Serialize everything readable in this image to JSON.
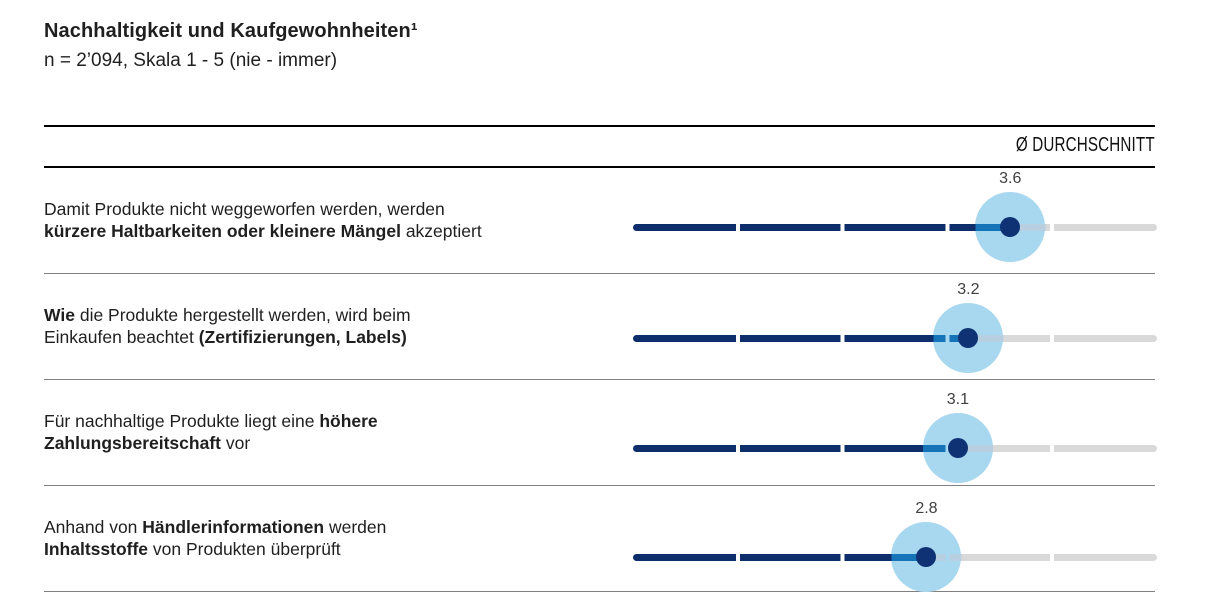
{
  "colors": {
    "navy": "#0d2e6b",
    "dot_navy": "#0e3273",
    "halo_blue": "#a8d7f0",
    "halo_line_blue": "#1573b8",
    "halo_line_gray": "#b7cfe0",
    "track_gray": "#d9d9d9",
    "separator_gray": "#808080",
    "header_line_black": "#000000",
    "value_label_gray": "#404040"
  },
  "chart_data": {
    "type": "scatter",
    "subtype": "dot-plot-averages",
    "title": "Nachhaltigkeit und Kaufgewohnheiten¹",
    "subtitle": "n = 2’094, Skala 1 - 5 (nie - immer)",
    "n": "2’094",
    "value_column_header": "Ø DURCHSCHNITT",
    "scale": {
      "min": 1,
      "max": 5,
      "min_label": "nie",
      "max_label": "immer"
    },
    "axis_range_drawn": [
      0,
      5
    ],
    "tick_gaps_at": [
      1,
      2,
      3,
      4
    ],
    "grid": false,
    "legend": false,
    "categories": [
      "Damit Produkte nicht weggeworfen werden, werden kürzere Haltbarkeiten oder kleinere Mängel akzeptiert",
      "Wie die Produkte hergestellt werden, wird beim Einkaufen beachtet (Zertifizierungen, Labels)",
      "Für nachhaltige Produkte liegt eine höhere Zahlungsbereitschaft vor",
      "Anhand von Händlerinformationen werden Inhaltsstoffe von Produkten überprüft"
    ],
    "values": [
      3.6,
      3.2,
      3.1,
      2.8
    ],
    "rows": [
      {
        "value": "3.6",
        "lines": [
          [
            {
              "t": "Damit Produkte nicht weggeworfen werden, werden",
              "b": false
            }
          ],
          [
            {
              "t": "kürzere Haltbarkeiten oder kleinere Mängel",
              "b": true
            },
            {
              "t": " akzeptiert",
              "b": false
            }
          ]
        ]
      },
      {
        "value": "3.2",
        "lines": [
          [
            {
              "t": "Wie",
              "b": true
            },
            {
              "t": " die Produkte hergestellt werden, wird beim",
              "b": false
            }
          ],
          [
            {
              "t": "Einkaufen beachtet ",
              "b": false
            },
            {
              "t": "(Zertifizierungen, Labels)",
              "b": true
            }
          ]
        ]
      },
      {
        "value": "3.1",
        "lines": [
          [
            {
              "t": "Für nachhaltige Produkte liegt eine ",
              "b": false
            },
            {
              "t": "höhere",
              "b": true
            }
          ],
          [
            {
              "t": "Zahlungsbereitschaft",
              "b": true
            },
            {
              "t": " vor",
              "b": false
            }
          ]
        ]
      },
      {
        "value": "2.8",
        "lines": [
          [
            {
              "t": "Anhand von ",
              "b": false
            },
            {
              "t": "Händlerinformationen",
              "b": true
            },
            {
              "t": " werden",
              "b": false
            }
          ],
          [
            {
              "t": "Inhaltsstoffe",
              "b": true
            },
            {
              "t": " von Produkten überprüft",
              "b": false
            }
          ]
        ]
      }
    ]
  }
}
